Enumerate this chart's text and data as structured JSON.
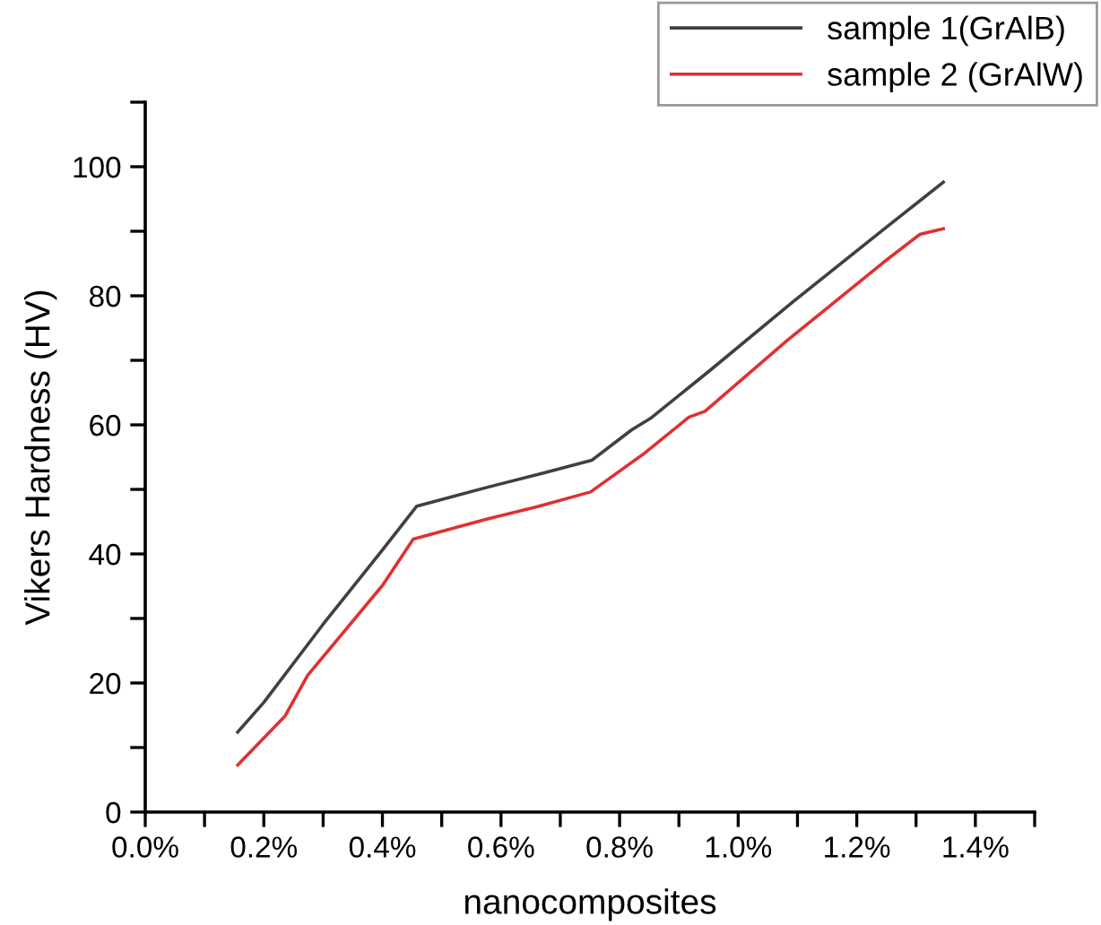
{
  "chart_data": {
    "type": "line",
    "xlabel": "nanocomposites",
    "ylabel": "Vikers Hardness (HV)",
    "xlim": [
      0,
      1.5
    ],
    "ylim": [
      0,
      110
    ],
    "xticks": [
      {
        "value": 0,
        "label": "0.0%"
      },
      {
        "value": 0.1,
        "label": null
      },
      {
        "value": 0.2,
        "label": "0.2%"
      },
      {
        "value": 0.3,
        "label": null
      },
      {
        "value": 0.4,
        "label": "0.4%"
      },
      {
        "value": 0.5,
        "label": null
      },
      {
        "value": 0.6,
        "label": "0.6%"
      },
      {
        "value": 0.7,
        "label": null
      },
      {
        "value": 0.8,
        "label": "0.8%"
      },
      {
        "value": 0.9,
        "label": null
      },
      {
        "value": 1.0,
        "label": "1.0%"
      },
      {
        "value": 1.1,
        "label": null
      },
      {
        "value": 1.2,
        "label": "1.2%"
      },
      {
        "value": 1.3,
        "label": null
      },
      {
        "value": 1.4,
        "label": "1.4%"
      },
      {
        "value": 1.5,
        "label": null
      }
    ],
    "yticks": [
      0,
      {
        "value": 10,
        "label": null
      },
      20,
      {
        "value": 30,
        "label": null
      },
      40,
      {
        "value": 50,
        "label": null
      },
      60,
      {
        "value": 70,
        "label": null
      },
      80,
      {
        "value": 90,
        "label": null
      },
      100,
      {
        "value": 110,
        "label": null
      }
    ],
    "grid": false,
    "legend": "top right",
    "marker": "none",
    "line_style": "solid",
    "series": [
      {
        "name": "sample 1(GrAlB)",
        "color": "#404040",
        "x": [
          0.156,
          0.2,
          0.3,
          0.4,
          0.458,
          0.58,
          0.67,
          0.753,
          0.82,
          0.852,
          0.952,
          1.093,
          1.244,
          1.346
        ],
        "values": [
          12.4,
          17.0,
          29.1,
          40.6,
          47.4,
          50.4,
          52.5,
          54.5,
          59.2,
          61.0,
          68.4,
          79.1,
          90.2,
          97.6
        ]
      },
      {
        "name": "sample 2 (GrAlW)",
        "color": "#e03030",
        "x": [
          0.156,
          0.236,
          0.274,
          0.4,
          0.452,
          0.58,
          0.66,
          0.751,
          0.842,
          0.917,
          0.944,
          1.083,
          1.244,
          1.306,
          1.346
        ],
        "values": [
          7.3,
          14.9,
          21.2,
          35.1,
          42.3,
          45.5,
          47.3,
          49.6,
          55.6,
          61.2,
          62.1,
          73.1,
          85.1,
          89.5,
          90.4
        ]
      }
    ]
  }
}
